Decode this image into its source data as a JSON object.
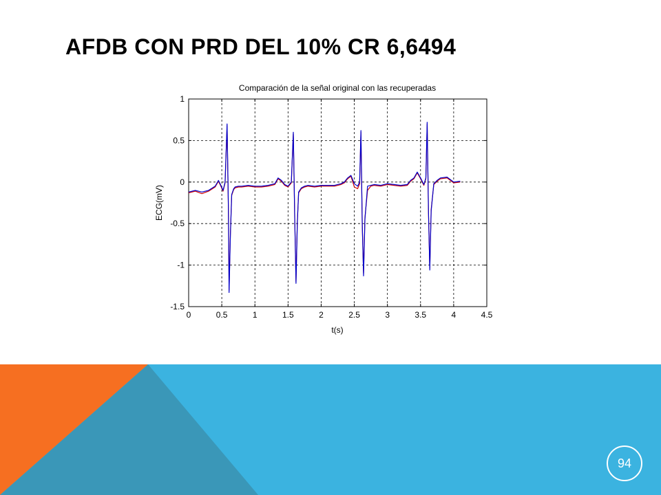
{
  "slide": {
    "title": "AFDB CON PRD DEL 10% CR 6,6494",
    "page_number": "94",
    "colors": {
      "blue_band": "#3BB3E0",
      "orange": "#F66F21",
      "teal": "#3A97B8",
      "text": "#000000"
    }
  },
  "chart_data": {
    "type": "line",
    "title": "Comparación de la señal original con las recuperadas",
    "xlabel": "t(s)",
    "ylabel": "ECG(mV)",
    "xlim": [
      0,
      4.5
    ],
    "ylim": [
      -1.5,
      1
    ],
    "xticks": [
      0,
      0.5,
      1,
      1.5,
      2,
      2.5,
      3,
      3.5,
      4,
      4.5
    ],
    "xtick_labels": [
      "0",
      "0.5",
      "1",
      "1.5",
      "2",
      "2.5",
      "3",
      "3.5",
      "4",
      "4.5"
    ],
    "yticks": [
      1,
      0.5,
      0,
      -0.5,
      -1,
      -1.5
    ],
    "ytick_labels": [
      "1",
      "0.5",
      "0",
      "-0.5",
      "-1",
      "-1.5"
    ],
    "grid": true,
    "series": [
      {
        "color": "#0000CC",
        "x": [
          0,
          0.1,
          0.2,
          0.3,
          0.4,
          0.45,
          0.48,
          0.52,
          0.55,
          0.58,
          0.6,
          0.61,
          0.63,
          0.65,
          0.68,
          0.7,
          0.75,
          0.8,
          0.9,
          1.0,
          1.1,
          1.2,
          1.3,
          1.35,
          1.4,
          1.45,
          1.5,
          1.55,
          1.58,
          1.6,
          1.62,
          1.64,
          1.66,
          1.7,
          1.75,
          1.8,
          1.9,
          2.0,
          2.1,
          2.2,
          2.3,
          2.35,
          2.4,
          2.45,
          2.5,
          2.55,
          2.58,
          2.6,
          2.62,
          2.64,
          2.66,
          2.7,
          2.75,
          2.8,
          2.9,
          3.0,
          3.1,
          3.2,
          3.3,
          3.35,
          3.4,
          3.45,
          3.5,
          3.55,
          3.58,
          3.6,
          3.62,
          3.64,
          3.66,
          3.7,
          3.75,
          3.8,
          3.9,
          4.0,
          4.1
        ],
        "y": [
          -0.12,
          -0.1,
          -0.12,
          -0.1,
          -0.05,
          0.02,
          -0.03,
          -0.1,
          0.0,
          0.7,
          -0.3,
          -1.33,
          -0.65,
          -0.15,
          -0.08,
          -0.06,
          -0.05,
          -0.05,
          -0.04,
          -0.05,
          -0.05,
          -0.04,
          -0.02,
          0.05,
          0.02,
          -0.03,
          -0.05,
          0.0,
          0.6,
          -0.4,
          -1.22,
          -0.5,
          -0.12,
          -0.07,
          -0.05,
          -0.04,
          -0.05,
          -0.04,
          -0.04,
          -0.04,
          -0.02,
          0.0,
          0.05,
          0.08,
          -0.02,
          -0.05,
          0.0,
          0.62,
          -0.5,
          -1.13,
          -0.45,
          -0.05,
          -0.04,
          -0.03,
          -0.04,
          -0.02,
          -0.03,
          -0.04,
          -0.03,
          0.02,
          0.05,
          0.12,
          0.05,
          -0.03,
          0.05,
          0.72,
          -0.35,
          -1.06,
          -0.35,
          -0.02,
          0.02,
          0.05,
          0.06,
          0.0,
          0.01
        ]
      },
      {
        "color": "#CC0000",
        "x": [
          0,
          0.1,
          0.2,
          0.3,
          0.4,
          0.45,
          0.48,
          0.52,
          0.55,
          0.58,
          0.6,
          0.61,
          0.63,
          0.65,
          0.68,
          0.7,
          0.75,
          0.8,
          0.9,
          1.0,
          1.1,
          1.2,
          1.3,
          1.35,
          1.4,
          1.45,
          1.5,
          1.55,
          1.58,
          1.6,
          1.62,
          1.64,
          1.66,
          1.7,
          1.75,
          1.8,
          1.9,
          2.0,
          2.1,
          2.2,
          2.3,
          2.35,
          2.4,
          2.45,
          2.5,
          2.55,
          2.58,
          2.6,
          2.62,
          2.64,
          2.66,
          2.7,
          2.75,
          2.8,
          2.9,
          3.0,
          3.1,
          3.2,
          3.3,
          3.35,
          3.4,
          3.45,
          3.5,
          3.55,
          3.58,
          3.6,
          3.62,
          3.64,
          3.66,
          3.7,
          3.75,
          3.8,
          3.9,
          4.0,
          4.1
        ],
        "y": [
          -0.13,
          -0.11,
          -0.14,
          -0.11,
          -0.06,
          0.01,
          -0.04,
          -0.11,
          -0.01,
          0.68,
          -0.32,
          -1.3,
          -0.62,
          -0.16,
          -0.09,
          -0.07,
          -0.06,
          -0.06,
          -0.05,
          -0.06,
          -0.06,
          -0.05,
          -0.03,
          0.04,
          0.01,
          -0.04,
          -0.06,
          -0.01,
          0.58,
          -0.42,
          -1.2,
          -0.48,
          -0.13,
          -0.08,
          -0.06,
          -0.05,
          -0.06,
          -0.05,
          -0.05,
          -0.05,
          -0.03,
          -0.01,
          0.04,
          0.07,
          -0.06,
          -0.08,
          -0.02,
          0.6,
          -0.52,
          -1.1,
          -0.43,
          -0.1,
          -0.05,
          -0.04,
          -0.05,
          -0.03,
          -0.04,
          -0.05,
          -0.04,
          0.01,
          0.04,
          0.11,
          0.04,
          -0.04,
          0.04,
          0.7,
          -0.37,
          -1.04,
          -0.33,
          -0.03,
          0.01,
          0.04,
          0.05,
          -0.01,
          0.0
        ]
      }
    ]
  }
}
